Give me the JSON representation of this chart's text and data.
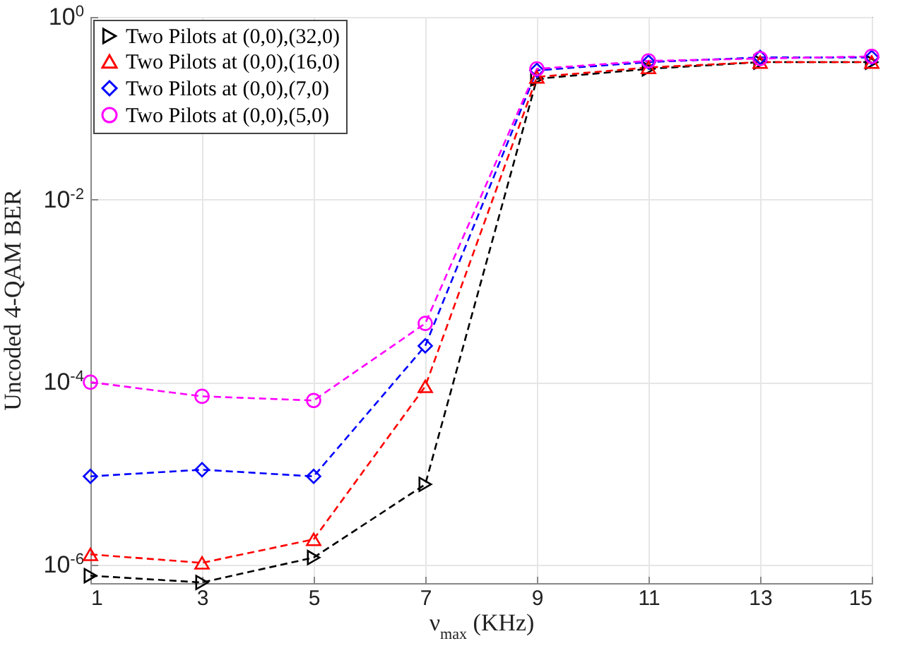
{
  "chart_data": {
    "type": "line",
    "xlabel": "ν$_{max}$ (KHz)",
    "ylabel": "Uncoded 4-QAM BER",
    "x": [
      1,
      3,
      5,
      7,
      9,
      11,
      13,
      15
    ],
    "series": [
      {
        "name": "Two Pilots at (0,0),(32,0)",
        "color": "#000000",
        "marker": "triangle-right",
        "values": [
          7.6e-07,
          6.4e-07,
          1.2e-06,
          7.6e-06,
          0.21,
          0.27,
          0.32,
          0.32
        ]
      },
      {
        "name": "Two Pilots at (0,0),(16,0)",
        "color": "#ff0000",
        "marker": "triangle",
        "values": [
          1.3e-06,
          1.05e-06,
          1.9e-06,
          9e-05,
          0.22,
          0.28,
          0.32,
          0.32
        ]
      },
      {
        "name": "Two Pilots at (0,0),(7,0)",
        "color": "#0000ff",
        "marker": "diamond",
        "values": [
          9.3e-06,
          1.1e-05,
          9.3e-06,
          0.00025,
          0.26,
          0.32,
          0.36,
          0.36
        ]
      },
      {
        "name": "Two Pilots at (0,0),(5,0)",
        "color": "#ff00ff",
        "marker": "circle",
        "values": [
          0.0001,
          7e-05,
          6.3e-05,
          0.00044,
          0.27,
          0.33,
          0.35,
          0.37
        ]
      }
    ],
    "log": "y",
    "xlim": [
      1,
      15
    ],
    "xticks": [
      1,
      3,
      5,
      7,
      9,
      11,
      13,
      15
    ],
    "ylim": [
      6.3e-07,
      1
    ],
    "yticks": [
      {
        "value": 1e-06,
        "label": "10$^{-6}$"
      },
      {
        "value": 0.0001,
        "label": "10$^{-4}$"
      },
      {
        "value": 0.01,
        "label": "10$^{-2}$"
      },
      {
        "value": 1,
        "label": "10$^{0}$"
      }
    ],
    "grid": true,
    "legend": "top left",
    "line_style": "dashed"
  }
}
